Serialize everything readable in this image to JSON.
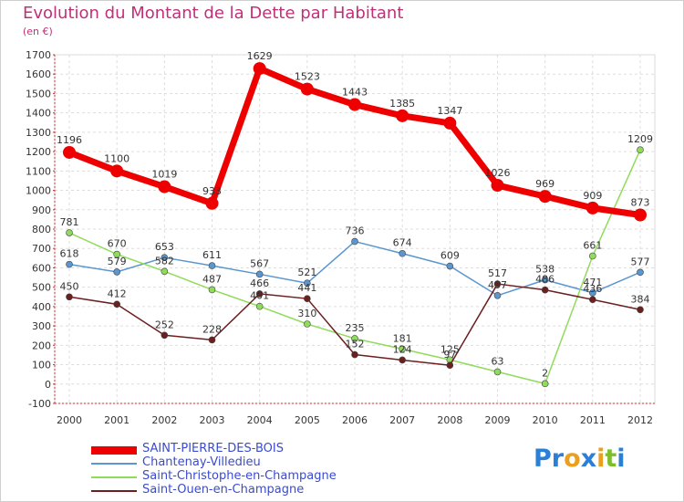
{
  "title": "Evolution du Montant de la Dette par Habitant",
  "unit": "(en €)",
  "logo": {
    "text": "Proxiti",
    "letters": [
      "P",
      "r",
      "o",
      "x",
      "i",
      "t",
      "i"
    ],
    "colors": [
      "#2c7fd6",
      "#2c7fd6",
      "#e9a020",
      "#2c7fd6",
      "#e9a020",
      "#7cbf2c",
      "#2c7fd6"
    ]
  },
  "chart_data": {
    "type": "line",
    "title": "Evolution du Montant de la Dette par Habitant",
    "subtitle": "(en €)",
    "xlabel": "",
    "ylabel": "",
    "x": [
      "2000",
      "2001",
      "2002",
      "2003",
      "2004",
      "2005",
      "2006",
      "2007",
      "2008",
      "2009",
      "2010",
      "2011",
      "2012"
    ],
    "yticks": [
      "1700",
      "1600",
      "1500",
      "1400",
      "1300",
      "1200",
      "1100",
      "1000",
      "900",
      "800",
      "700",
      "600",
      "500",
      "400",
      "300",
      "200",
      "100",
      "0",
      "-100"
    ],
    "ylim": [
      -100,
      1700
    ],
    "grid": true,
    "legend_position": "bottom-left",
    "series": [
      {
        "name": "SAINT-PIERRE-DES-BOIS",
        "color": "#ee0000",
        "values": [
          1196,
          1100,
          1019,
          933,
          1629,
          1523,
          1443,
          1385,
          1347,
          1026,
          969,
          909,
          873
        ]
      },
      {
        "name": "Chantenay-Villedieu",
        "color": "#5a96cf",
        "values": [
          618,
          579,
          653,
          611,
          567,
          521,
          736,
          674,
          609,
          457,
          538,
          471,
          577
        ]
      },
      {
        "name": "Saint-Christophe-en-Champagne",
        "color": "#8fdc5a",
        "values": [
          781,
          670,
          582,
          487,
          401,
          310,
          235,
          181,
          125,
          63,
          2,
          661,
          1209
        ]
      },
      {
        "name": "Saint-Ouen-en-Champagne",
        "color": "#6b1f1f",
        "values": [
          450,
          412,
          252,
          228,
          466,
          441,
          152,
          124,
          97,
          517,
          486,
          436,
          384
        ]
      }
    ]
  }
}
